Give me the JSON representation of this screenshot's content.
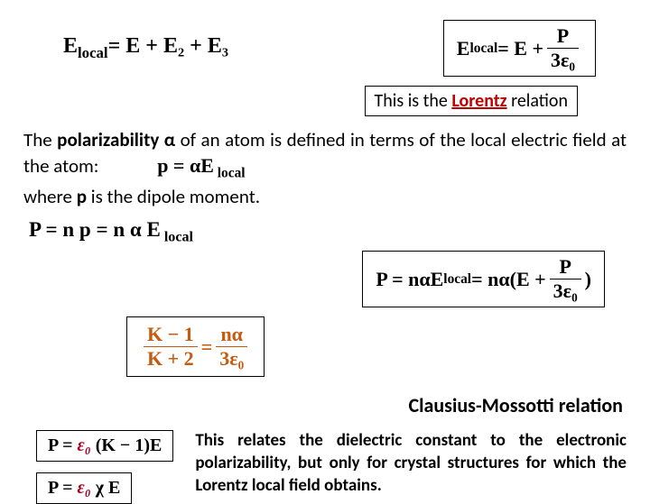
{
  "eq1_left": "E",
  "eq1_sub": "local",
  "eq1_right": "= E + E₂ + E₃",
  "eq2_lhs": "E",
  "eq2_sub": "local",
  "eq2_mid": " = E + ",
  "eq2_num": "P",
  "eq2_den": "3ε₀",
  "lorentz_pre": "This is the ",
  "lorentz_key": "Lorentz",
  "lorentz_post": " relation",
  "para1a": "The ",
  "para1b": "polarizability α",
  "para1c": " of an atom is defined in terms of the local electric field at the atom:",
  "para1_eq": "p = αE",
  "para1_eq_sub": " local",
  "para2": "where ",
  "para2b": "p",
  "para2c": " is the dipole moment.",
  "eq3": "P = n p =  n α E",
  "eq3_sub": " local",
  "eq4_lhs": "P = nαE",
  "eq4_sub": "local",
  "eq4_mid": " = nα(E + ",
  "eq4_num": "P",
  "eq4_den": "3ε₀",
  "eq4_close": ")",
  "cm_lnum": "K − 1",
  "cm_lden": "K + 2",
  "cm_eq": " = ",
  "cm_rnum": "nα",
  "cm_rden": "3ε₀",
  "cm_label": "Clausius-Mossotti relation",
  "small1a": "P = ",
  "small1b": "ε₀",
  "small1c": " (K − 1)",
  "small1d": "E",
  "small2a": "P = ",
  "small2b": "ε₀",
  "small2c": " χ ",
  "small2d": "E",
  "explain": "This relates the dielectric constant to the electronic polarizability, but only for crystal structures for which the Lorentz local field obtains."
}
